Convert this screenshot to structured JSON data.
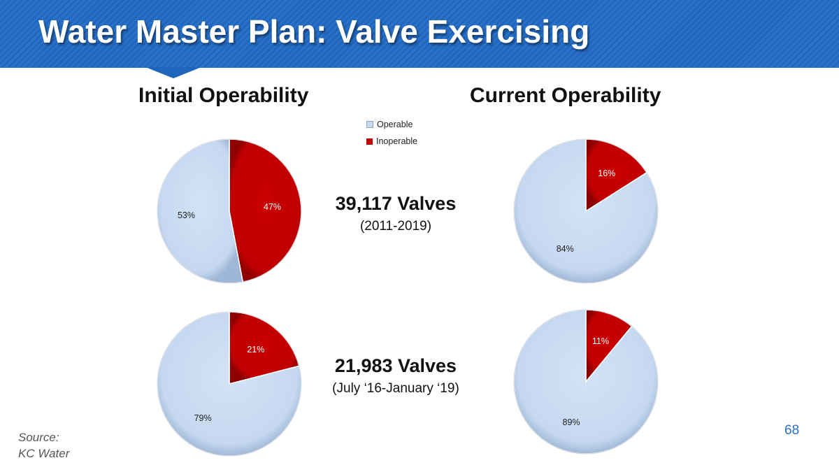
{
  "slide": {
    "title": "Water Master Plan: Valve Exercising",
    "heading_initial": "Initial Operability",
    "heading_current": "Current Operability",
    "page_number": "68",
    "source_line1": "Source:",
    "source_line2": "KC Water"
  },
  "legend": {
    "operable": "Operable",
    "inoperable": "Inoperable"
  },
  "colors": {
    "operable": "#c7daf1",
    "inoperable": "#c00000",
    "accent": "#2166bd"
  },
  "rows": [
    {
      "count": "39,117 Valves",
      "period": "(2011-2019)"
    },
    {
      "count": "21,983 Valves",
      "period": "(July ‘16-January ‘19)"
    }
  ],
  "chart_data": [
    {
      "type": "pie",
      "title": "Initial Operability",
      "subtitle": "39,117 Valves (2011-2019)",
      "categories": [
        "Operable",
        "Inoperable"
      ],
      "values": [
        53,
        47
      ],
      "labels": [
        "53%",
        "47%"
      ]
    },
    {
      "type": "pie",
      "title": "Current Operability",
      "subtitle": "39,117 Valves (2011-2019)",
      "categories": [
        "Operable",
        "Inoperable"
      ],
      "values": [
        84,
        16
      ],
      "labels": [
        "84%",
        "16%"
      ]
    },
    {
      "type": "pie",
      "title": "Initial Operability",
      "subtitle": "21,983 Valves (July ‘16-January ‘19)",
      "categories": [
        "Operable",
        "Inoperable"
      ],
      "values": [
        79,
        21
      ],
      "labels": [
        "79%",
        "21%"
      ]
    },
    {
      "type": "pie",
      "title": "Current Operability",
      "subtitle": "21,983 Valves (July ‘16-January ‘19)",
      "categories": [
        "Operable",
        "Inoperable"
      ],
      "values": [
        89,
        11
      ],
      "labels": [
        "89%",
        "11%"
      ]
    }
  ]
}
